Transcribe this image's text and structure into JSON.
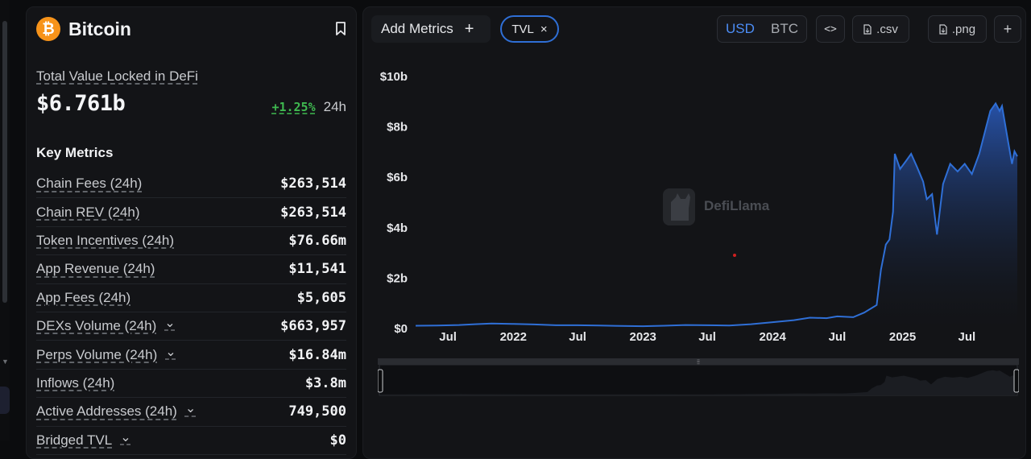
{
  "chain": {
    "name": "Bitcoin",
    "logo_glyph": "₿",
    "logo_color": "#f7931a"
  },
  "tvl": {
    "label": "Total Value Locked in DeFi",
    "value": "$6.761b",
    "change": "+1.25%",
    "period": "24h"
  },
  "key_metrics": {
    "title": "Key Metrics",
    "rows": [
      {
        "label": "Chain Fees (24h)",
        "value": "$263,514",
        "expandable": false
      },
      {
        "label": "Chain REV (24h)",
        "value": "$263,514",
        "expandable": false
      },
      {
        "label": "Token Incentives (24h)",
        "value": "$76.66m",
        "expandable": false
      },
      {
        "label": "App Revenue (24h)",
        "value": "$11,541",
        "expandable": false
      },
      {
        "label": "App Fees (24h)",
        "value": "$5,605",
        "expandable": false
      },
      {
        "label": "DEXs Volume (24h)",
        "value": "$663,957",
        "expandable": true
      },
      {
        "label": "Perps Volume (24h)",
        "value": "$16.84m",
        "expandable": true
      },
      {
        "label": "Inflows (24h)",
        "value": "$3.8m",
        "expandable": false
      },
      {
        "label": "Active Addresses (24h)",
        "value": "749,500",
        "expandable": true
      },
      {
        "label": "Bridged TVL",
        "value": "$0",
        "expandable": true
      }
    ]
  },
  "toolbar": {
    "add_metrics": "Add Metrics",
    "plus": "+",
    "metric_chip": "TVL",
    "chip_close": "×",
    "currency_usd": "USD",
    "currency_btc": "BTC",
    "embed": "<>",
    "csv": ".csv",
    "png": ".png",
    "more": "+"
  },
  "watermark": "DefiLlama",
  "colors": {
    "accent": "#4c8df6",
    "line": "#2f6fd6",
    "positive": "#3fb950",
    "panel": "#131417",
    "background": "#0b0c0e"
  },
  "chart_data": {
    "type": "area",
    "series": [
      {
        "values": [
          [
            "2021-04-01",
            0.08
          ],
          [
            "2021-06-01",
            0.09
          ],
          [
            "2021-08-01",
            0.11
          ],
          [
            "2021-09-15",
            0.14
          ],
          [
            "2021-11-01",
            0.17
          ],
          [
            "2022-01-01",
            0.15
          ],
          [
            "2022-03-01",
            0.13
          ],
          [
            "2022-05-01",
            0.1
          ],
          [
            "2022-07-01",
            0.1
          ],
          [
            "2022-09-01",
            0.09
          ],
          [
            "2022-11-01",
            0.07
          ],
          [
            "2023-01-01",
            0.06
          ],
          [
            "2023-03-01",
            0.08
          ],
          [
            "2023-05-01",
            0.11
          ],
          [
            "2023-07-01",
            0.1
          ],
          [
            "2023-09-01",
            0.09
          ],
          [
            "2023-11-01",
            0.14
          ],
          [
            "2024-01-01",
            0.22
          ],
          [
            "2024-03-01",
            0.3
          ],
          [
            "2024-04-15",
            0.4
          ],
          [
            "2024-06-01",
            0.38
          ],
          [
            "2024-07-01",
            0.45
          ],
          [
            "2024-08-15",
            0.42
          ],
          [
            "2024-09-15",
            0.6
          ],
          [
            "2024-10-20",
            0.9
          ],
          [
            "2024-11-01",
            2.3
          ],
          [
            "2024-11-15",
            3.3
          ],
          [
            "2024-11-25",
            3.5
          ],
          [
            "2024-12-05",
            4.6
          ],
          [
            "2024-12-10",
            6.9
          ],
          [
            "2024-12-25",
            6.3
          ],
          [
            "2025-01-10",
            6.6
          ],
          [
            "2025-01-25",
            6.9
          ],
          [
            "2025-02-10",
            6.4
          ],
          [
            "2025-02-28",
            5.8
          ],
          [
            "2025-03-10",
            5.1
          ],
          [
            "2025-03-25",
            5.3
          ],
          [
            "2025-04-08",
            3.7
          ],
          [
            "2025-04-25",
            5.7
          ],
          [
            "2025-05-15",
            6.5
          ],
          [
            "2025-06-05",
            6.2
          ],
          [
            "2025-06-25",
            6.5
          ],
          [
            "2025-07-15",
            6.1
          ],
          [
            "2025-08-05",
            6.9
          ],
          [
            "2025-08-25",
            8.0
          ],
          [
            "2025-09-05",
            8.6
          ],
          [
            "2025-09-20",
            8.9
          ],
          [
            "2025-10-01",
            8.6
          ],
          [
            "2025-10-08",
            8.8
          ],
          [
            "2025-10-25",
            7.4
          ],
          [
            "2025-11-05",
            6.5
          ],
          [
            "2025-11-12",
            7.0
          ],
          [
            "2025-11-20",
            6.8
          ]
        ]
      }
    ],
    "x_ticks": [
      "Jul",
      "2022",
      "Jul",
      "2023",
      "Jul",
      "2024",
      "Jul",
      "2025",
      "Jul"
    ],
    "y_ticks": [
      "$0",
      "$2b",
      "$4b",
      "$6b",
      "$8b",
      "$10b"
    ],
    "ylim": [
      0,
      10
    ],
    "xlim": [
      "2021-04-01",
      "2025-11-20"
    ],
    "y_unit": "billion USD",
    "grid": false,
    "legend": "none"
  }
}
